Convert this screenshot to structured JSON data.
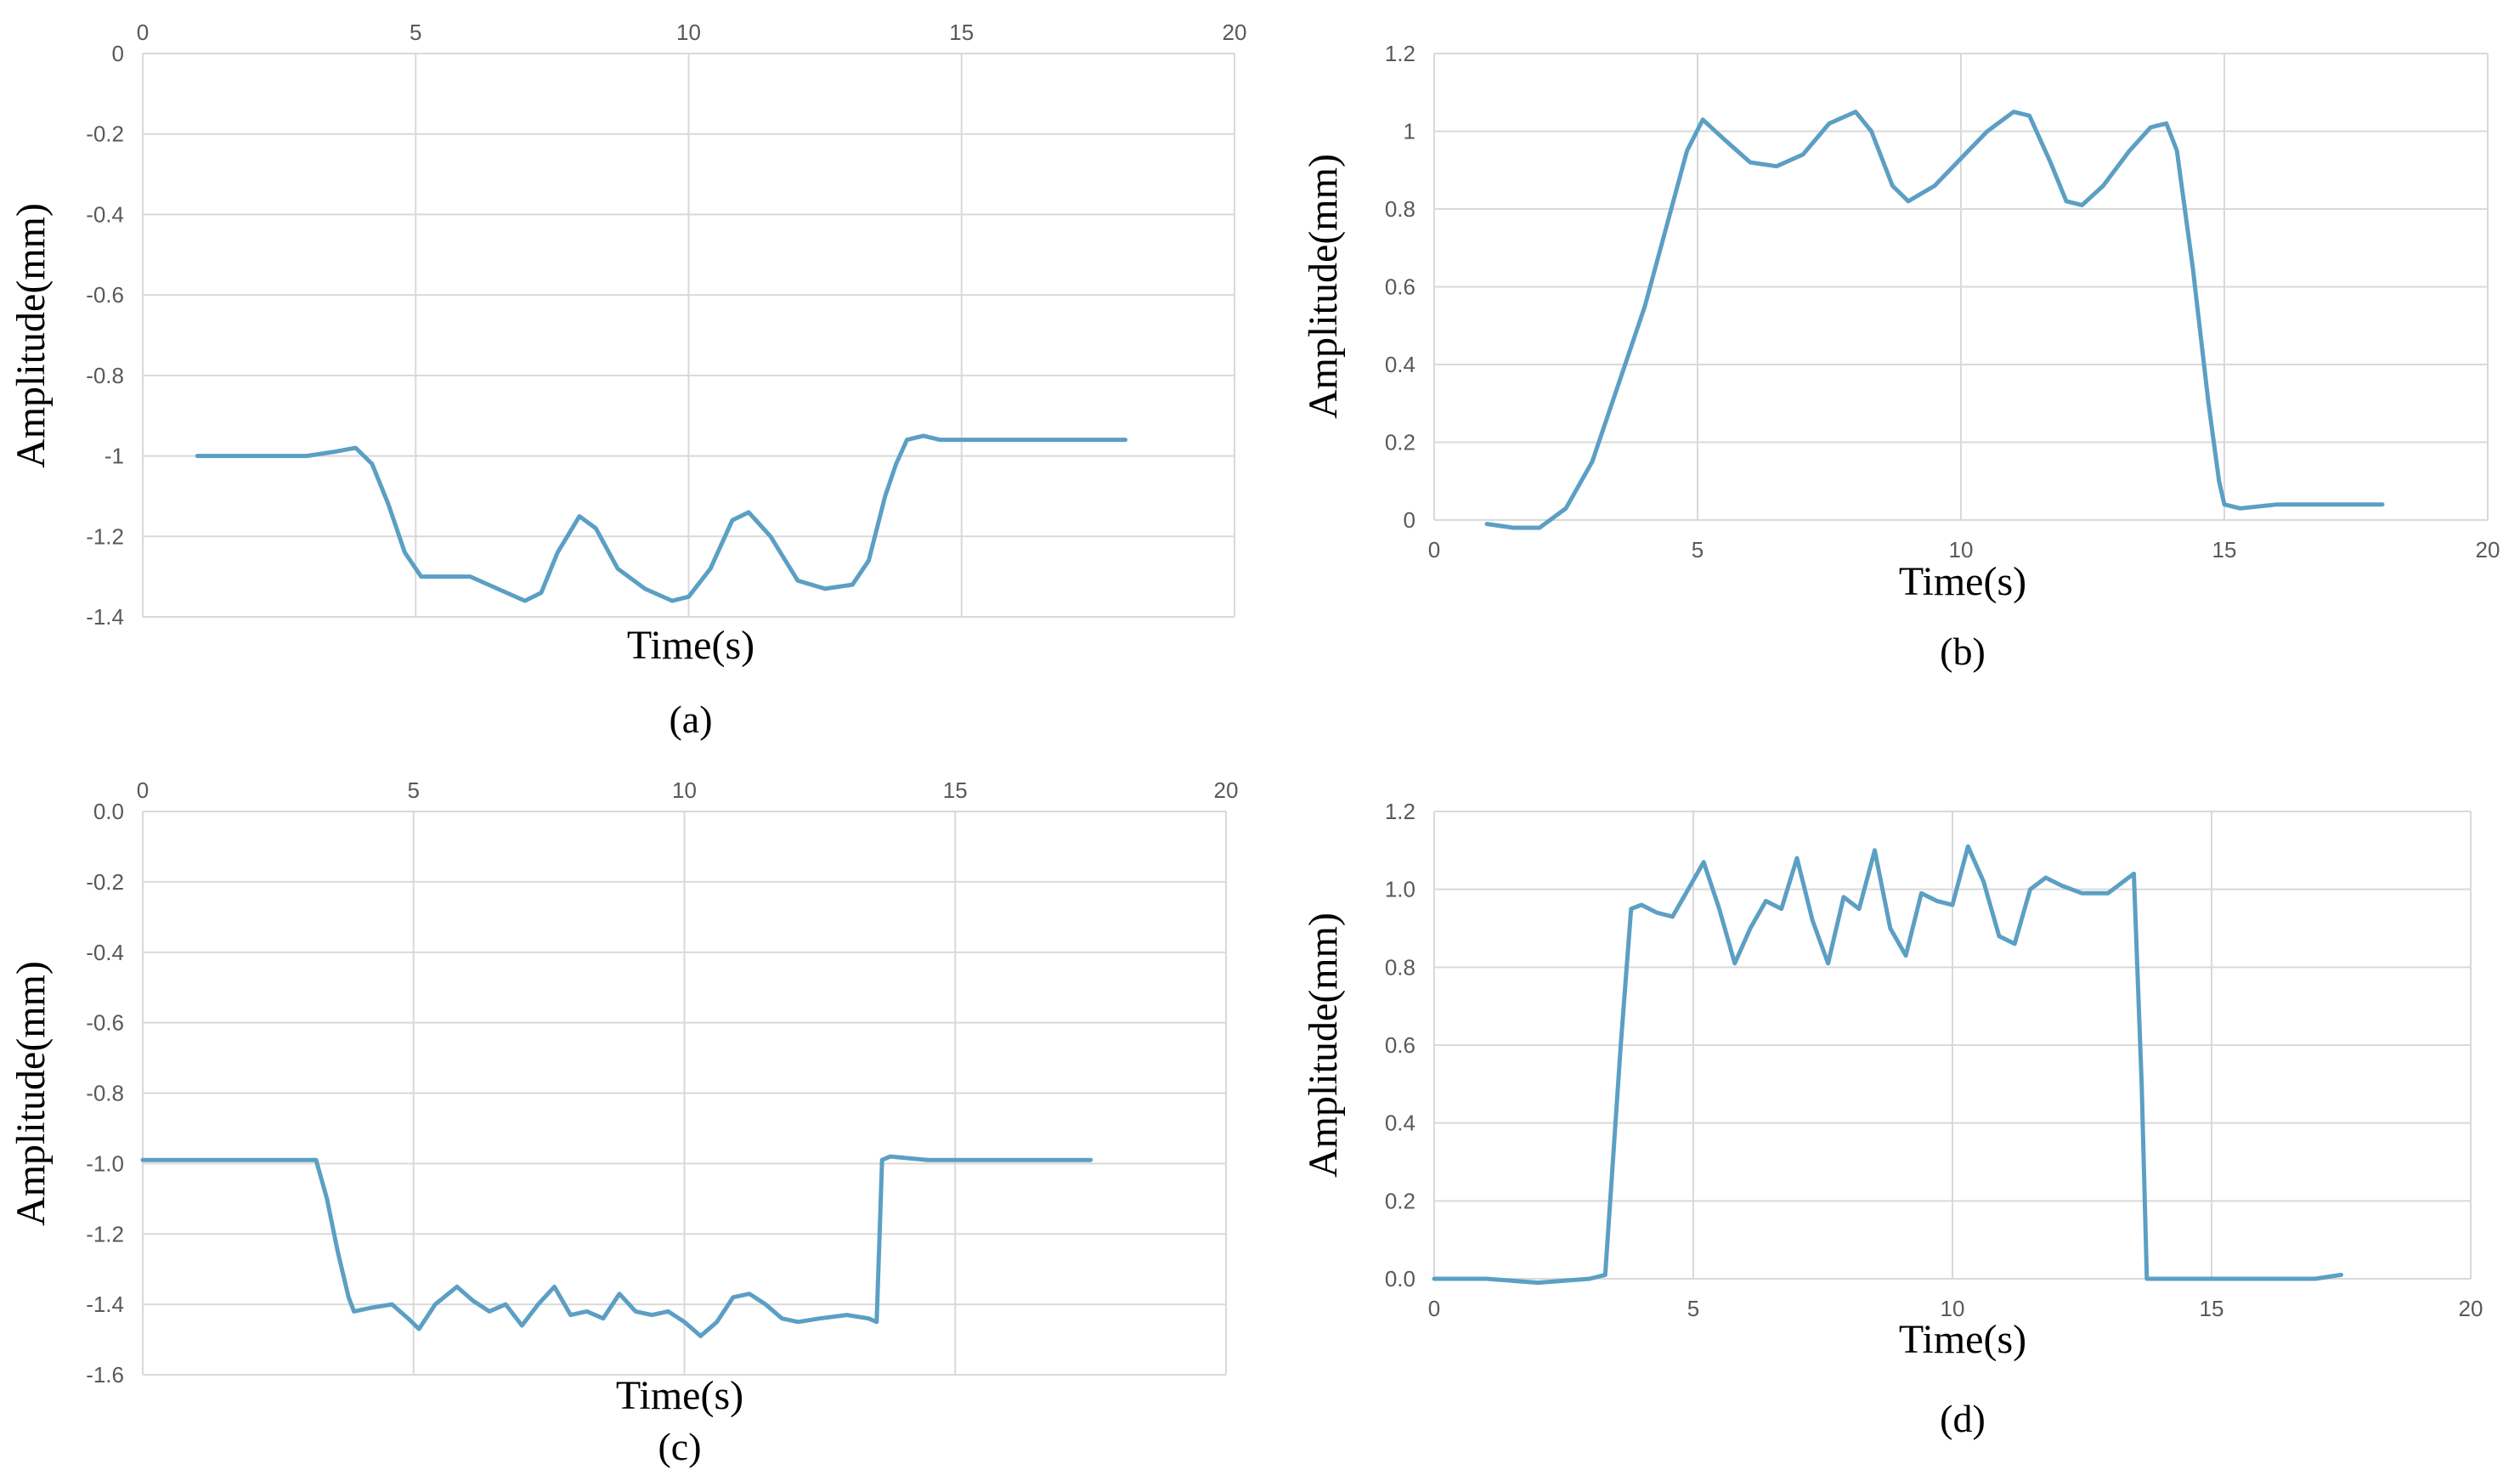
{
  "series_color": "#5b9fc4",
  "chart_data": [
    {
      "type": "line",
      "caption": "(a)",
      "xlabel": "Time(s)",
      "ylabel": "Amplitude(mm)",
      "xlim": [
        0,
        20
      ],
      "ylim": [
        -1.4,
        0
      ],
      "x_ticks": [
        "0",
        "5",
        "10",
        "15",
        "20"
      ],
      "y_ticks": [
        "0",
        "-0.2",
        "-0.4",
        "-0.6",
        "-0.8",
        "-1",
        "-1.2",
        "-1.4"
      ],
      "x_axis_position": "top",
      "grid": true,
      "series": [
        {
          "x": [
            1,
            2,
            3,
            3.5,
            3.9,
            4.2,
            4.5,
            4.8,
            5.1,
            5.5,
            6,
            6.5,
            7,
            7.3,
            7.6,
            8,
            8.3,
            8.7,
            9.2,
            9.7,
            10,
            10.4,
            10.8,
            11.1,
            11.5,
            12,
            12.5,
            13,
            13.3,
            13.6,
            13.8,
            14,
            14.3,
            14.6,
            15,
            16,
            17,
            18
          ],
          "y": [
            -1.0,
            -1.0,
            -1.0,
            -0.99,
            -0.98,
            -1.02,
            -1.12,
            -1.24,
            -1.3,
            -1.3,
            -1.3,
            -1.33,
            -1.36,
            -1.34,
            -1.24,
            -1.15,
            -1.18,
            -1.28,
            -1.33,
            -1.36,
            -1.35,
            -1.28,
            -1.16,
            -1.14,
            -1.2,
            -1.31,
            -1.33,
            -1.32,
            -1.26,
            -1.1,
            -1.02,
            -0.96,
            -0.95,
            -0.96,
            -0.96,
            -0.96,
            -0.96,
            -0.96
          ]
        }
      ]
    },
    {
      "type": "line",
      "caption": "(b)",
      "xlabel": "Time(s)",
      "ylabel": "Amplitude(mm)",
      "xlim": [
        0,
        20
      ],
      "ylim": [
        0,
        1.2
      ],
      "x_ticks": [
        "0",
        "5",
        "10",
        "15",
        "20"
      ],
      "y_ticks": [
        "0",
        "0.2",
        "0.4",
        "0.6",
        "0.8",
        "1",
        "1.2"
      ],
      "x_axis_position": "bottom",
      "grid": true,
      "series": [
        {
          "x": [
            1,
            1.5,
            2,
            2.5,
            3,
            3.5,
            4,
            4.4,
            4.8,
            5.1,
            5.5,
            6,
            6.5,
            7,
            7.5,
            8,
            8.3,
            8.7,
            9,
            9.5,
            10,
            10.5,
            11,
            11.3,
            11.7,
            12,
            12.3,
            12.7,
            13.2,
            13.6,
            13.9,
            14.1,
            14.4,
            14.7,
            14.9,
            15,
            15.3,
            16,
            17,
            18
          ],
          "y": [
            -0.01,
            -0.02,
            -0.02,
            0.03,
            0.15,
            0.35,
            0.55,
            0.75,
            0.95,
            1.03,
            0.98,
            0.92,
            0.91,
            0.94,
            1.02,
            1.05,
            1.0,
            0.86,
            0.82,
            0.86,
            0.93,
            1.0,
            1.05,
            1.04,
            0.92,
            0.82,
            0.81,
            0.86,
            0.95,
            1.01,
            1.02,
            0.95,
            0.65,
            0.3,
            0.1,
            0.04,
            0.03,
            0.04,
            0.04,
            0.04
          ]
        }
      ]
    },
    {
      "type": "line",
      "caption": "(c)",
      "xlabel": "Time(s)",
      "ylabel": "Amplitude(mm)",
      "xlim": [
        0,
        20
      ],
      "ylim": [
        -1.6,
        0
      ],
      "x_ticks": [
        "0",
        "5",
        "10",
        "15",
        "20"
      ],
      "y_ticks": [
        "0.0",
        "-0.2",
        "-0.4",
        "-0.6",
        "-0.8",
        "-1.0",
        "-1.2",
        "-1.4",
        "-1.6"
      ],
      "x_axis_position": "top",
      "grid": true,
      "series": [
        {
          "x": [
            0,
            1,
            2,
            3,
            3.2,
            3.4,
            3.6,
            3.8,
            3.9,
            4.2,
            4.6,
            4.9,
            5.1,
            5.4,
            5.8,
            6.1,
            6.4,
            6.7,
            7,
            7.3,
            7.6,
            7.9,
            8.2,
            8.5,
            8.8,
            9.1,
            9.4,
            9.7,
            10,
            10.3,
            10.6,
            10.9,
            11.2,
            11.5,
            11.8,
            12.1,
            12.5,
            13,
            13.4,
            13.55,
            13.65,
            13.8,
            14.5,
            15.5,
            16.5,
            17.5
          ],
          "y": [
            -0.99,
            -0.99,
            -0.99,
            -0.99,
            -0.99,
            -1.1,
            -1.25,
            -1.38,
            -1.42,
            -1.41,
            -1.4,
            -1.44,
            -1.47,
            -1.4,
            -1.35,
            -1.39,
            -1.42,
            -1.4,
            -1.46,
            -1.4,
            -1.35,
            -1.43,
            -1.42,
            -1.44,
            -1.37,
            -1.42,
            -1.43,
            -1.42,
            -1.45,
            -1.49,
            -1.45,
            -1.38,
            -1.37,
            -1.4,
            -1.44,
            -1.45,
            -1.44,
            -1.43,
            -1.44,
            -1.45,
            -0.99,
            -0.98,
            -0.99,
            -0.99,
            -0.99,
            -0.99
          ]
        }
      ]
    },
    {
      "type": "line",
      "caption": "(d)",
      "xlabel": "Time(s)",
      "ylabel": "Amplitude(mm)",
      "xlim": [
        0,
        20
      ],
      "ylim": [
        0,
        1.2
      ],
      "x_ticks": [
        "0",
        "5",
        "10",
        "15",
        "20"
      ],
      "y_ticks": [
        "0.0",
        "0.2",
        "0.4",
        "0.6",
        "0.8",
        "1.0",
        "1.2"
      ],
      "x_axis_position": "bottom",
      "grid": true,
      "series": [
        {
          "x": [
            0,
            1,
            2,
            3,
            3.3,
            3.6,
            3.8,
            4.0,
            4.3,
            4.6,
            4.9,
            5.2,
            5.5,
            5.8,
            6.1,
            6.4,
            6.7,
            7.0,
            7.3,
            7.6,
            7.9,
            8.2,
            8.5,
            8.8,
            9.1,
            9.4,
            9.7,
            10.0,
            10.3,
            10.6,
            10.9,
            11.2,
            11.5,
            11.8,
            12.1,
            12.5,
            13,
            13.5,
            13.65,
            13.75,
            14,
            15,
            16,
            17,
            17.5
          ],
          "y": [
            0.0,
            0.0,
            -0.01,
            0.0,
            0.01,
            0.6,
            0.95,
            0.96,
            0.94,
            0.93,
            1.0,
            1.07,
            0.95,
            0.81,
            0.9,
            0.97,
            0.95,
            1.08,
            0.92,
            0.81,
            0.98,
            0.95,
            1.1,
            0.9,
            0.83,
            0.99,
            0.97,
            0.96,
            1.11,
            1.02,
            0.88,
            0.86,
            1.0,
            1.03,
            1.01,
            0.99,
            0.99,
            1.04,
            0.5,
            0.0,
            0.0,
            0.0,
            0.0,
            0.0,
            0.01
          ]
        }
      ]
    }
  ]
}
